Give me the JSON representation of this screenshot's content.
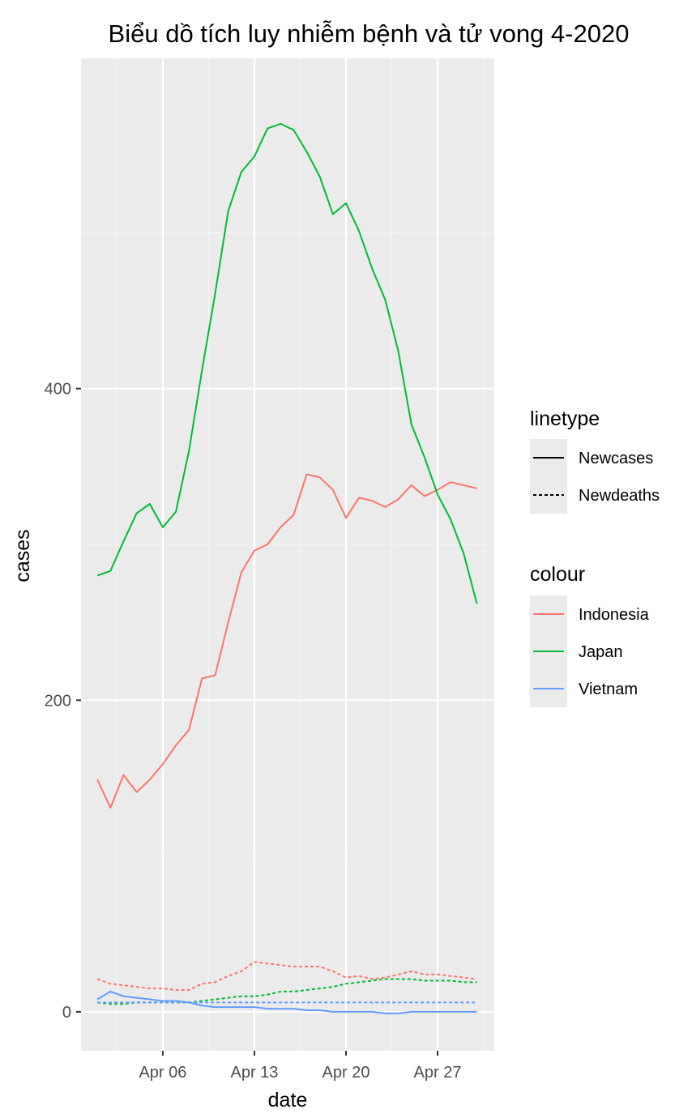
{
  "chart_data": {
    "type": "line",
    "title": "Biểu dồ tích luy nhiễm bệnh và tử vong 4-2020",
    "xlabel": "date",
    "ylabel": "cases",
    "x": [
      "2020-04-01",
      "2020-04-02",
      "2020-04-03",
      "2020-04-04",
      "2020-04-05",
      "2020-04-06",
      "2020-04-07",
      "2020-04-08",
      "2020-04-09",
      "2020-04-10",
      "2020-04-11",
      "2020-04-12",
      "2020-04-13",
      "2020-04-14",
      "2020-04-15",
      "2020-04-16",
      "2020-04-17",
      "2020-04-18",
      "2020-04-19",
      "2020-04-20",
      "2020-04-21",
      "2020-04-22",
      "2020-04-23",
      "2020-04-24",
      "2020-04-25",
      "2020-04-26",
      "2020-04-27",
      "2020-04-28",
      "2020-04-29",
      "2020-04-30"
    ],
    "x_ticks": [
      {
        "date": "2020-04-06",
        "label": "Apr 06"
      },
      {
        "date": "2020-04-13",
        "label": "Apr 13"
      },
      {
        "date": "2020-04-20",
        "label": "Apr 20"
      },
      {
        "date": "2020-04-27",
        "label": "Apr 27"
      }
    ],
    "y_ticks": [
      0,
      200,
      400
    ],
    "ylim": [
      -25,
      612
    ],
    "xlim": [
      "2020-03-30T18:00",
      "2020-05-01T08:00"
    ],
    "grid": true,
    "legend_position": "right",
    "series": [
      {
        "country": "Indonesia",
        "linetype": "Newcases",
        "values": [
          149,
          131,
          152,
          141,
          149,
          159,
          171,
          181,
          214,
          216,
          250,
          282,
          296,
          300,
          311,
          319,
          345,
          343,
          335,
          317,
          330,
          328,
          324,
          329,
          338,
          331,
          335,
          340,
          338,
          336
        ]
      },
      {
        "country": "Japan",
        "linetype": "Newcases",
        "values": [
          280,
          283,
          302,
          320,
          326,
          311,
          321,
          360,
          412,
          461,
          514,
          539,
          549,
          567,
          570,
          566,
          552,
          536,
          512,
          519,
          501,
          477,
          457,
          424,
          377,
          356,
          332,
          316,
          294,
          262
        ]
      },
      {
        "country": "Vietnam",
        "linetype": "Newcases",
        "values": [
          8,
          13,
          10,
          9,
          8,
          7,
          7,
          6,
          4,
          3,
          3,
          3,
          3,
          2,
          2,
          2,
          1,
          1,
          0,
          0,
          0,
          0,
          -1,
          -1,
          0,
          0,
          0,
          0,
          0,
          0
        ]
      },
      {
        "country": "Indonesia",
        "linetype": "Newdeaths",
        "values": [
          21,
          18,
          17,
          16,
          15,
          15,
          14,
          14,
          18,
          19,
          23,
          26,
          32,
          31,
          30,
          29,
          29,
          29,
          26,
          22,
          23,
          21,
          22,
          24,
          26,
          24,
          24,
          23,
          22,
          21
        ]
      },
      {
        "country": "Japan",
        "linetype": "Newdeaths",
        "values": [
          6,
          5,
          5,
          6,
          6,
          6,
          6,
          6,
          7,
          8,
          9,
          10,
          10,
          11,
          13,
          13,
          14,
          15,
          16,
          18,
          19,
          20,
          21,
          21,
          21,
          20,
          20,
          20,
          19,
          19
        ]
      },
      {
        "country": "Vietnam",
        "linetype": "Newdeaths",
        "values": [
          6,
          6,
          6,
          6,
          6,
          6,
          6,
          6,
          6,
          6,
          6,
          6,
          6,
          6,
          6,
          6,
          6,
          6,
          6,
          6,
          6,
          6,
          6,
          6,
          6,
          6,
          6,
          6,
          6,
          6
        ]
      }
    ],
    "legend": {
      "linetype_title": "linetype",
      "linetype_items": [
        {
          "label": "Newcases",
          "dash": "solid"
        },
        {
          "label": "Newdeaths",
          "dash": "dotted"
        }
      ],
      "colour_title": "colour",
      "colour_items": [
        {
          "label": "Indonesia",
          "color": "#F8766D"
        },
        {
          "label": "Japan",
          "color": "#00BA38"
        },
        {
          "label": "Vietnam",
          "color": "#619CFF"
        }
      ]
    },
    "colors": {
      "panel": "#EBEBEB",
      "grid_major": "#FFFFFF",
      "grid_minor": "#F5F5F5",
      "tick": "#333333"
    }
  }
}
